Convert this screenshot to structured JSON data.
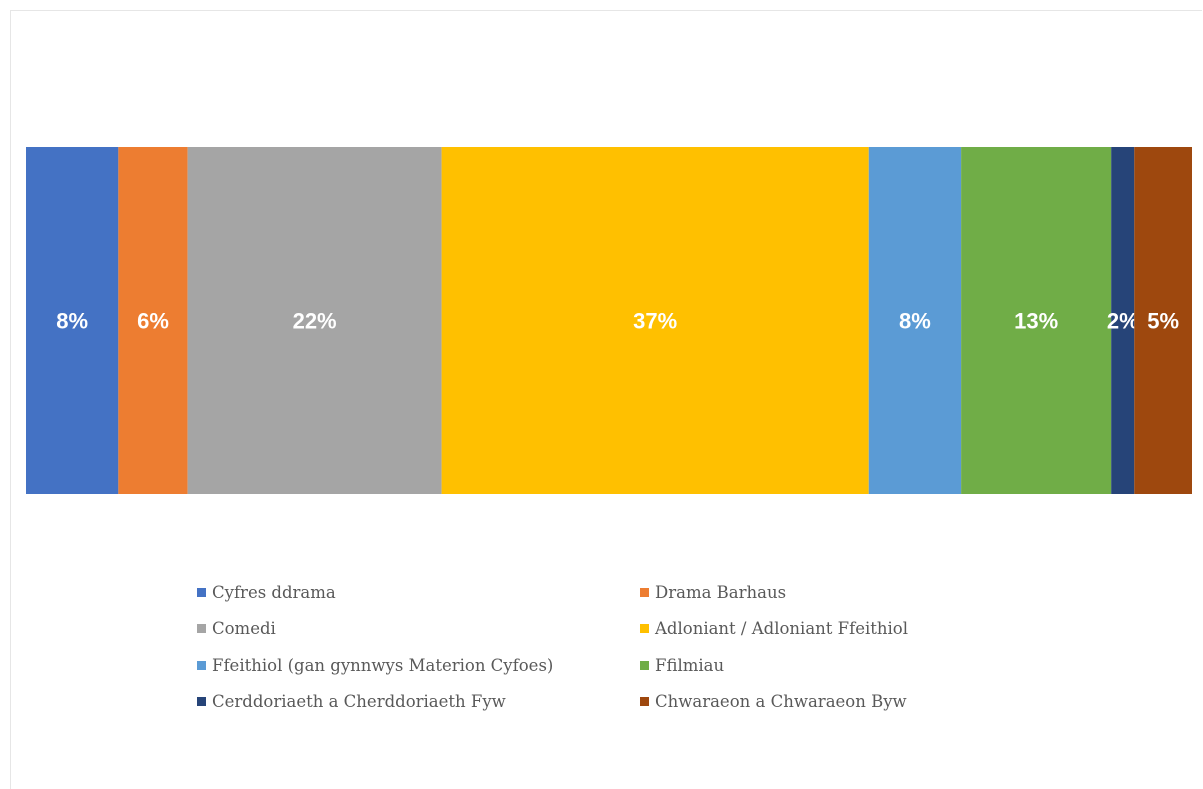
{
  "chart_data": {
    "type": "bar",
    "orientation": "horizontal-stacked-100",
    "grid": false,
    "legend_position": "bottom",
    "series": [
      {
        "name": "Cyfres ddrama",
        "value": 8,
        "label": "8%",
        "color": "#4472c4"
      },
      {
        "name": "Drama Barhaus",
        "value": 6,
        "label": "6%",
        "color": "#ed7d31"
      },
      {
        "name": "Comedi",
        "value": 22,
        "label": "22%",
        "color": "#a5a5a5"
      },
      {
        "name": "Adloniant / Adloniant Ffeithiol",
        "value": 37,
        "label": "37%",
        "color": "#ffc000"
      },
      {
        "name": "Ffeithiol (gan gynnwys Materion Cyfoes)",
        "value": 8,
        "label": "8%",
        "color": "#5b9bd5"
      },
      {
        "name": "Ffilmiau",
        "value": 13,
        "label": "13%",
        "color": "#70ad47"
      },
      {
        "name": "Cerddoriaeth a Cherddoriaeth Fyw",
        "value": 2,
        "label": "2%",
        "color": "#264478"
      },
      {
        "name": "Chwaraeon a Chwaraeon Byw",
        "value": 5,
        "label": "5%",
        "color": "#9e480e"
      }
    ]
  }
}
